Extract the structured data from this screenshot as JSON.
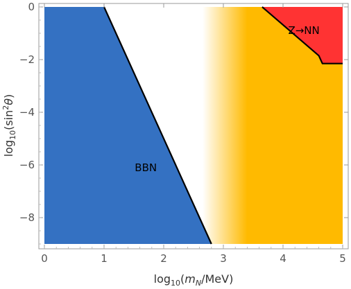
{
  "chart_data": {
    "type": "area",
    "title": "",
    "xlabel": {
      "prefix": "log",
      "sub": "10",
      "open": "(",
      "var": "m",
      "var_sub": "N",
      "rest": "/MeV)"
    },
    "ylabel": {
      "prefix": "log",
      "sub": "10",
      "open": "(sin",
      "sup": "2",
      "var": "θ",
      "close": ")"
    },
    "xlim": [
      0,
      5
    ],
    "ylim": [
      -9,
      0
    ],
    "x_ticks": [
      0,
      1,
      2,
      3,
      4,
      5
    ],
    "y_ticks": [
      0,
      -2,
      -4,
      -6,
      -8
    ],
    "x_tick_labels": [
      "0",
      "1",
      "2",
      "3",
      "4",
      "5"
    ],
    "y_tick_labels": [
      "0",
      "−2",
      "−4",
      "−6",
      "−8"
    ],
    "regions": [
      {
        "name": "BBN",
        "label": "BBN",
        "label_at": [
          1.7,
          -6.1
        ],
        "color": "#3471C2",
        "boundary": [
          [
            0,
            0
          ],
          [
            1.0,
            0
          ],
          [
            2.8,
            -9.0
          ],
          [
            0,
            -9.0
          ]
        ],
        "edge": [
          [
            1.0,
            0
          ],
          [
            2.8,
            -9.0
          ]
        ]
      },
      {
        "name": "gradient-constraint",
        "label": "",
        "color": "#FFBA00",
        "fade_from_x": 2.65,
        "full_at_x": 3.4,
        "boundary": [
          [
            2.65,
            0
          ],
          [
            5,
            0
          ],
          [
            5,
            -9.0
          ],
          [
            2.65,
            -9.0
          ]
        ]
      },
      {
        "name": "Z-to-NN",
        "label": "Z→NN",
        "label_at": [
          4.35,
          -0.9
        ],
        "color": "#FF3333",
        "boundary": [
          [
            3.65,
            0
          ],
          [
            5,
            0
          ],
          [
            5,
            -2.15
          ],
          [
            4.66,
            -2.15
          ],
          [
            4.6,
            -1.85
          ]
        ],
        "edge": [
          [
            3.65,
            0
          ],
          [
            4.6,
            -1.85
          ],
          [
            4.66,
            -2.15
          ],
          [
            5,
            -2.15
          ]
        ]
      }
    ]
  }
}
